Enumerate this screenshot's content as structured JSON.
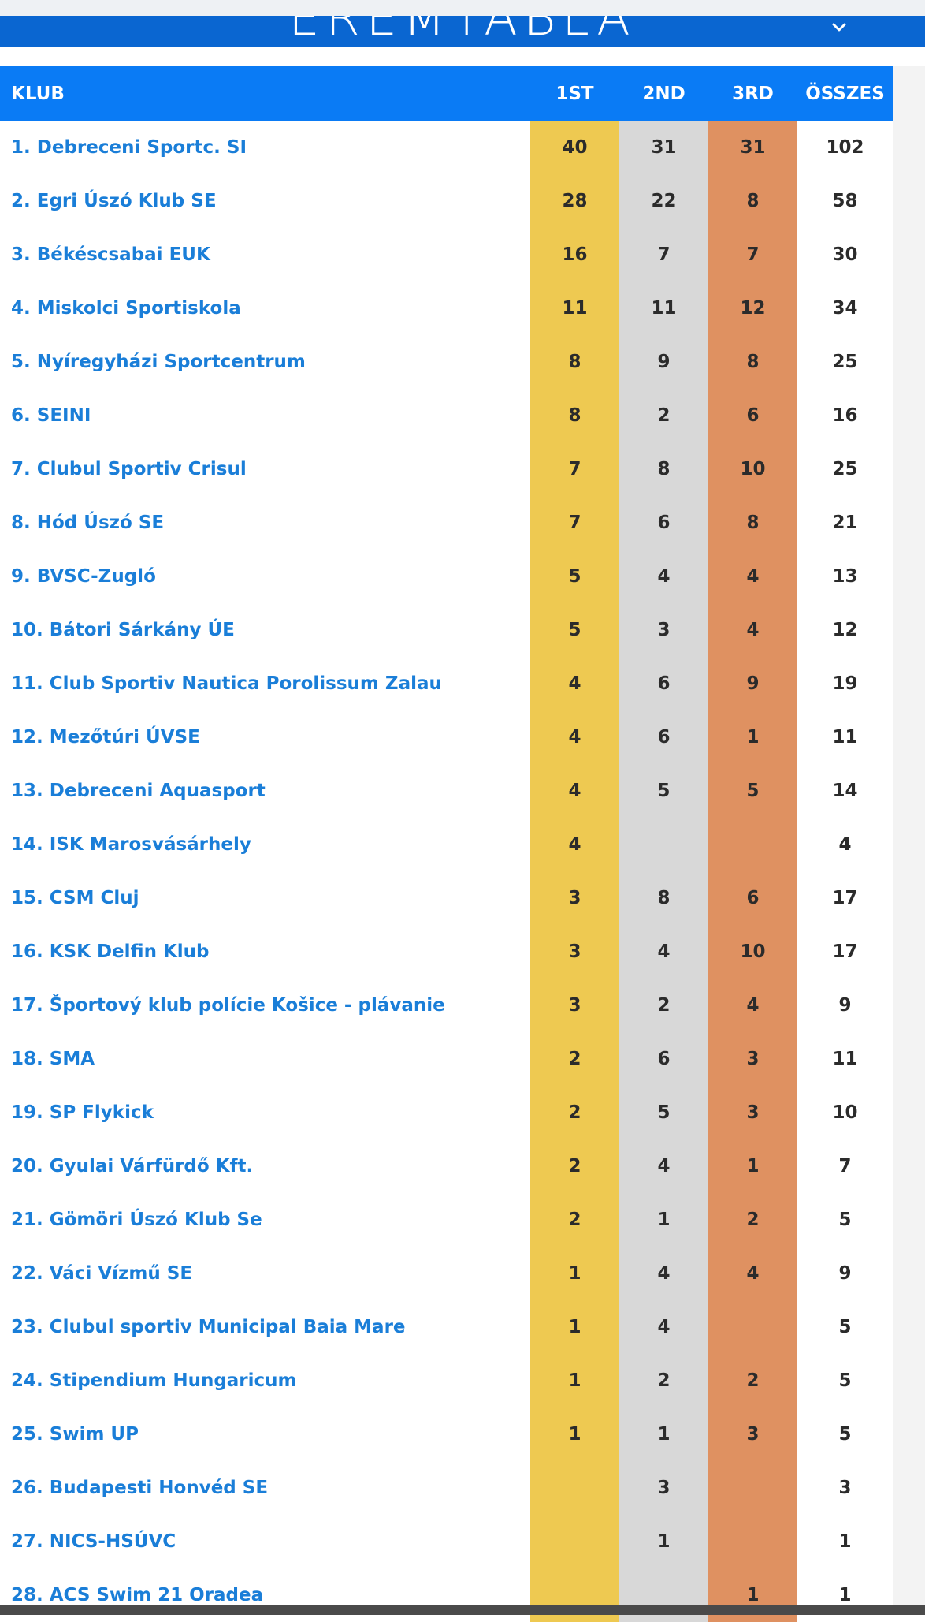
{
  "header": {
    "title": "ÉREMTÁBLA",
    "toggle_icon": "chevron-down-icon"
  },
  "columns": {
    "club": "KLUB",
    "first": "1ST",
    "second": "2ND",
    "third": "3RD",
    "total": "ÖSSZES"
  },
  "colors": {
    "header_bg": "#0a7bf5",
    "accordion_bg": "#0a66d1",
    "gold": "#eec951",
    "silver": "#d8d8d8",
    "bronze": "#df9161",
    "club_text": "#1a7ed8"
  },
  "rows": [
    {
      "club": "1. Debreceni Sportc. SI",
      "first": "40",
      "second": "31",
      "third": "31",
      "total": "102"
    },
    {
      "club": "2. Egri Úszó Klub SE",
      "first": "28",
      "second": "22",
      "third": "8",
      "total": "58"
    },
    {
      "club": "3. Békéscsabai EUK",
      "first": "16",
      "second": "7",
      "third": "7",
      "total": "30"
    },
    {
      "club": "4. Miskolci Sportiskola",
      "first": "11",
      "second": "11",
      "third": "12",
      "total": "34"
    },
    {
      "club": "5. Nyíregyházi Sportcentrum",
      "first": "8",
      "second": "9",
      "third": "8",
      "total": "25"
    },
    {
      "club": "6. SEINI",
      "first": "8",
      "second": "2",
      "third": "6",
      "total": "16"
    },
    {
      "club": "7. Clubul Sportiv Crisul",
      "first": "7",
      "second": "8",
      "third": "10",
      "total": "25"
    },
    {
      "club": "8. Hód Úszó SE",
      "first": "7",
      "second": "6",
      "third": "8",
      "total": "21"
    },
    {
      "club": "9. BVSC-Zugló",
      "first": "5",
      "second": "4",
      "third": "4",
      "total": "13"
    },
    {
      "club": "10. Bátori Sárkány ÚE",
      "first": "5",
      "second": "3",
      "third": "4",
      "total": "12"
    },
    {
      "club": "11. Club Sportiv Nautica Porolissum Zalau",
      "first": "4",
      "second": "6",
      "third": "9",
      "total": "19"
    },
    {
      "club": "12. Mezőtúri ÚVSE",
      "first": "4",
      "second": "6",
      "third": "1",
      "total": "11"
    },
    {
      "club": "13. Debreceni Aquasport",
      "first": "4",
      "second": "5",
      "third": "5",
      "total": "14"
    },
    {
      "club": "14. ISK Marosvásárhely",
      "first": "4",
      "second": "",
      "third": "",
      "total": "4"
    },
    {
      "club": "15. CSM Cluj",
      "first": "3",
      "second": "8",
      "third": "6",
      "total": "17"
    },
    {
      "club": "16. KSK Delfin Klub",
      "first": "3",
      "second": "4",
      "third": "10",
      "total": "17"
    },
    {
      "club": "17. Športový klub polície Košice - plávanie",
      "first": "3",
      "second": "2",
      "third": "4",
      "total": "9"
    },
    {
      "club": "18. SMA",
      "first": "2",
      "second": "6",
      "third": "3",
      "total": "11"
    },
    {
      "club": "19. SP Flykick",
      "first": "2",
      "second": "5",
      "third": "3",
      "total": "10"
    },
    {
      "club": "20. Gyulai Várfürdő Kft.",
      "first": "2",
      "second": "4",
      "third": "1",
      "total": "7"
    },
    {
      "club": "21. Gömöri Úszó Klub Se",
      "first": "2",
      "second": "1",
      "third": "2",
      "total": "5"
    },
    {
      "club": "22. Váci Vízmű SE",
      "first": "1",
      "second": "4",
      "third": "4",
      "total": "9"
    },
    {
      "club": "23. Clubul sportiv Municipal Baia Mare",
      "first": "1",
      "second": "4",
      "third": "",
      "total": "5"
    },
    {
      "club": "24. Stipendium Hungaricum",
      "first": "1",
      "second": "2",
      "third": "2",
      "total": "5"
    },
    {
      "club": "25. Swim UP",
      "first": "1",
      "second": "1",
      "third": "3",
      "total": "5"
    },
    {
      "club": "26. Budapesti Honvéd SE",
      "first": "",
      "second": "3",
      "third": "",
      "total": "3"
    },
    {
      "club": "27. NICS-HSÚVC",
      "first": "",
      "second": "1",
      "third": "",
      "total": "1"
    },
    {
      "club": "28. ACS Swim 21 Oradea",
      "first": "",
      "second": "",
      "third": "1",
      "total": "1"
    }
  ]
}
